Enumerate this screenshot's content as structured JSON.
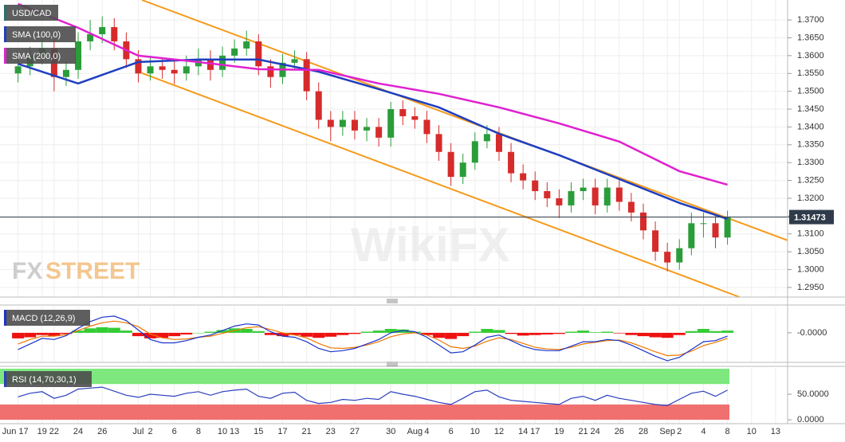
{
  "chart_data": [
    {
      "type": "candlestick",
      "title": "USD/CAD",
      "x": [
        0,
        1,
        2,
        3,
        4,
        5,
        6,
        7,
        8,
        9,
        10,
        11,
        12,
        13,
        14,
        15,
        16,
        17,
        18,
        19,
        20,
        21,
        22,
        23,
        24,
        25,
        26,
        27,
        28,
        29,
        30,
        31,
        32,
        33,
        34,
        35,
        36,
        37,
        38,
        39,
        40,
        41,
        42,
        43,
        44,
        45,
        46,
        47,
        48,
        49,
        50,
        51,
        52,
        53,
        54,
        55,
        56,
        57,
        58,
        59
      ],
      "open": [
        1.355,
        1.357,
        1.36,
        1.362,
        1.354,
        1.356,
        1.364,
        1.366,
        1.368,
        1.364,
        1.359,
        1.355,
        1.357,
        1.356,
        1.355,
        1.357,
        1.359,
        1.356,
        1.36,
        1.362,
        1.364,
        1.357,
        1.354,
        1.358,
        1.359,
        1.35,
        1.342,
        1.34,
        1.342,
        1.339,
        1.34,
        1.337,
        1.345,
        1.343,
        1.342,
        1.338,
        1.333,
        1.326,
        1.33,
        1.336,
        1.338,
        1.333,
        1.327,
        1.325,
        1.322,
        1.32,
        1.318,
        1.322,
        1.323,
        1.318,
        1.323,
        1.319,
        1.316,
        1.311,
        1.305,
        1.302,
        1.306,
        1.313,
        1.313,
        1.309
      ],
      "high": [
        1.3595,
        1.3625,
        1.3645,
        1.3645,
        1.3585,
        1.3665,
        1.37,
        1.371,
        1.3705,
        1.3665,
        1.3615,
        1.36,
        1.3595,
        1.3585,
        1.36,
        1.362,
        1.3615,
        1.3625,
        1.3645,
        1.367,
        1.366,
        1.359,
        1.3605,
        1.3615,
        1.361,
        1.3525,
        1.3445,
        1.3445,
        1.3445,
        1.3425,
        1.3425,
        1.347,
        1.3475,
        1.3455,
        1.3445,
        1.3405,
        1.3355,
        1.3325,
        1.3385,
        1.3405,
        1.34,
        1.3355,
        1.3295,
        1.3275,
        1.3245,
        1.3225,
        1.3245,
        1.3255,
        1.3255,
        1.3255,
        1.325,
        1.3215,
        1.3185,
        1.3135,
        1.3075,
        1.3085,
        1.316,
        1.316,
        1.315,
        1.3165
      ],
      "low": [
        1.3525,
        1.3545,
        1.3575,
        1.35,
        1.3515,
        1.3535,
        1.3615,
        1.3635,
        1.3615,
        1.3565,
        1.3525,
        1.353,
        1.3535,
        1.352,
        1.353,
        1.3545,
        1.353,
        1.354,
        1.358,
        1.36,
        1.3545,
        1.351,
        1.352,
        1.356,
        1.3475,
        1.3395,
        1.336,
        1.3375,
        1.3365,
        1.336,
        1.3345,
        1.3345,
        1.3405,
        1.3395,
        1.3355,
        1.3305,
        1.3235,
        1.324,
        1.328,
        1.334,
        1.3305,
        1.3245,
        1.3225,
        1.3195,
        1.3175,
        1.3145,
        1.316,
        1.3195,
        1.3155,
        1.316,
        1.3165,
        1.3135,
        1.3085,
        1.3025,
        1.2995,
        1.3,
        1.304,
        1.309,
        1.306,
        1.307
      ],
      "close": [
        1.357,
        1.36,
        1.362,
        1.354,
        1.356,
        1.364,
        1.366,
        1.368,
        1.364,
        1.359,
        1.355,
        1.357,
        1.356,
        1.355,
        1.357,
        1.359,
        1.356,
        1.36,
        1.362,
        1.364,
        1.357,
        1.354,
        1.358,
        1.359,
        1.35,
        1.342,
        1.34,
        1.342,
        1.339,
        1.34,
        1.337,
        1.345,
        1.343,
        1.342,
        1.338,
        1.333,
        1.326,
        1.33,
        1.336,
        1.338,
        1.333,
        1.327,
        1.325,
        1.322,
        1.32,
        1.318,
        1.322,
        1.323,
        1.318,
        1.323,
        1.319,
        1.316,
        1.311,
        1.305,
        1.302,
        1.306,
        1.313,
        1.313,
        1.309,
        1.3147
      ],
      "up_color": "#2a9d3a",
      "down_color": "#d62b2b",
      "lines": [
        {
          "name": "SMA (100,0)",
          "color": "#1f3fbf",
          "x": [
            0,
            5,
            10,
            15,
            20,
            25,
            30,
            35,
            40,
            45,
            50,
            55,
            59
          ],
          "values": [
            1.3577,
            1.3522,
            1.3582,
            1.3589,
            1.3589,
            1.3555,
            1.3506,
            1.3455,
            1.3381,
            1.3321,
            1.3254,
            1.3187,
            1.3142
          ]
        },
        {
          "name": "SMA (200,0)",
          "color": "#e020d0",
          "x": [
            0,
            5,
            10,
            15,
            20,
            25,
            30,
            35,
            40,
            45,
            50,
            55,
            59
          ],
          "values": [
            1.3745,
            1.3678,
            1.36,
            1.3582,
            1.3562,
            1.356,
            1.3522,
            1.3493,
            1.3455,
            1.341,
            1.3359,
            1.3276,
            1.3238
          ]
        }
      ],
      "trendlines": [
        {
          "color": "#f59a1a",
          "x": [
            10.3,
            64
          ],
          "values": [
            1.3756,
            1.3082
          ]
        },
        {
          "color": "#f59a1a",
          "x": [
            10.3,
            60
          ],
          "values": [
            1.3551,
            1.2923
          ]
        }
      ],
      "last_price": 1.31473,
      "xlim": [
        -1.5,
        64
      ],
      "xticks": [
        {
          "value": 0,
          "label": "Jun 17"
        },
        {
          "value": 2,
          "label": "19"
        },
        {
          "value": 3,
          "label": "22"
        },
        {
          "value": 5,
          "label": "24"
        },
        {
          "value": 7,
          "label": "26"
        },
        {
          "value": 10,
          "label": "Jul"
        },
        {
          "value": 11,
          "label": "2"
        },
        {
          "value": 13,
          "label": "6"
        },
        {
          "value": 15,
          "label": "8"
        },
        {
          "value": 17,
          "label": "10"
        },
        {
          "value": 18,
          "label": "13"
        },
        {
          "value": 20,
          "label": "15"
        },
        {
          "value": 22,
          "label": "17"
        },
        {
          "value": 24,
          "label": "21"
        },
        {
          "value": 26,
          "label": "23"
        },
        {
          "value": 28,
          "label": "27"
        },
        {
          "value": 31,
          "label": "30"
        },
        {
          "value": 33,
          "label": "Aug"
        },
        {
          "value": 34,
          "label": "4"
        },
        {
          "value": 36,
          "label": "6"
        },
        {
          "value": 38,
          "label": "10"
        },
        {
          "value": 40,
          "label": "12"
        },
        {
          "value": 42,
          "label": "14"
        },
        {
          "value": 43,
          "label": "17"
        },
        {
          "value": 45,
          "label": "19"
        },
        {
          "value": 47,
          "label": "21"
        },
        {
          "value": 48,
          "label": "24"
        },
        {
          "value": 50,
          "label": "26"
        },
        {
          "value": 52,
          "label": "28"
        },
        {
          "value": 54,
          "label": "Sep"
        },
        {
          "value": 55,
          "label": "2"
        },
        {
          "value": 57,
          "label": "4"
        },
        {
          "value": 59,
          "label": "8"
        },
        {
          "value": 61,
          "label": "10"
        },
        {
          "value": 63,
          "label": "13"
        }
      ],
      "ylim": [
        1.2923,
        1.3756
      ],
      "yticks": [
        {
          "value": 1.295,
          "label": "1.2950"
        },
        {
          "value": 1.3,
          "label": "1.3000"
        },
        {
          "value": 1.305,
          "label": "1.3050"
        },
        {
          "value": 1.31,
          "label": "1.3100"
        },
        {
          "value": 1.315,
          "label": "1.3150"
        },
        {
          "value": 1.32,
          "label": "1.3200"
        },
        {
          "value": 1.325,
          "label": "1.3250"
        },
        {
          "value": 1.33,
          "label": "1.3300"
        },
        {
          "value": 1.335,
          "label": "1.3350"
        },
        {
          "value": 1.34,
          "label": "1.3400"
        },
        {
          "value": 1.345,
          "label": "1.3450"
        },
        {
          "value": 1.35,
          "label": "1.3500"
        },
        {
          "value": 1.355,
          "label": "1.3550"
        },
        {
          "value": 1.36,
          "label": "1.3600"
        },
        {
          "value": 1.365,
          "label": "1.3650"
        },
        {
          "value": 1.37,
          "label": "1.3700"
        }
      ],
      "grid": true
    },
    {
      "type": "macd",
      "title": "MACD (12,26,9)",
      "histogram": [
        -0.001,
        -0.0008,
        -0.0004,
        -0.0006,
        -0.0002,
        0.0004,
        0.0008,
        0.001,
        0.0009,
        0.0004,
        -0.0006,
        -0.001,
        -0.0009,
        -0.0006,
        -0.0003,
        0.0,
        0.0002,
        0.0005,
        0.0008,
        0.0007,
        0.0003,
        -0.0004,
        -0.0006,
        -0.0004,
        -0.0007,
        -0.0009,
        -0.0007,
        -0.0004,
        -0.0002,
        0.0002,
        0.0004,
        0.0007,
        0.0006,
        0.0002,
        -0.0004,
        -0.0009,
        -0.0011,
        -0.0006,
        0.0002,
        0.0007,
        0.0005,
        -0.0002,
        -0.0005,
        -0.0004,
        -0.0003,
        -0.0002,
        0.0002,
        0.0004,
        0.0001,
        0.0002,
        -0.0001,
        -0.0004,
        -0.0006,
        -0.0008,
        -0.0009,
        -0.0004,
        0.0003,
        0.0007,
        0.0003,
        0.0004
      ],
      "macd": [
        -0.003,
        -0.002,
        -0.001,
        -0.0012,
        -0.0005,
        0.0008,
        0.002,
        0.0028,
        0.003,
        0.0022,
        0.0005,
        -0.0012,
        -0.0018,
        -0.0018,
        -0.0014,
        -0.0008,
        -0.0004,
        0.0004,
        0.0012,
        0.0016,
        0.0014,
        0.0002,
        -0.0006,
        -0.0008,
        -0.0016,
        -0.0028,
        -0.0034,
        -0.0032,
        -0.0028,
        -0.002,
        -0.0012,
        0.0,
        0.0004,
        0.0002,
        -0.0008,
        -0.0022,
        -0.0036,
        -0.0034,
        -0.0022,
        -0.0008,
        -0.0004,
        -0.0014,
        -0.0024,
        -0.003,
        -0.0032,
        -0.0032,
        -0.0024,
        -0.0016,
        -0.0016,
        -0.0012,
        -0.0014,
        -0.0022,
        -0.0032,
        -0.0042,
        -0.005,
        -0.0044,
        -0.003,
        -0.0016,
        -0.0014,
        -0.0006
      ],
      "signal": [
        -0.002,
        -0.0012,
        -0.0006,
        -0.0006,
        -0.0003,
        0.0004,
        0.0012,
        0.0018,
        0.0021,
        0.0018,
        0.0011,
        -0.0002,
        -0.0009,
        -0.0012,
        -0.0011,
        -0.0008,
        -0.0006,
        -0.0001,
        0.0004,
        0.0009,
        0.0011,
        0.0006,
        0.0,
        -0.0004,
        -0.0009,
        -0.0019,
        -0.0027,
        -0.0028,
        -0.0026,
        -0.0022,
        -0.0016,
        -0.0007,
        -0.0002,
        0.0,
        -0.0004,
        -0.0013,
        -0.0025,
        -0.0028,
        -0.0024,
        -0.0015,
        -0.0009,
        -0.0012,
        -0.0019,
        -0.0026,
        -0.0029,
        -0.003,
        -0.0026,
        -0.002,
        -0.0017,
        -0.0014,
        -0.0013,
        -0.0018,
        -0.0026,
        -0.0034,
        -0.0041,
        -0.004,
        -0.0033,
        -0.0023,
        -0.0017,
        -0.001
      ],
      "up_color": "#33cc33",
      "down_color": "#ee1111",
      "macd_color": "#1a33cc",
      "signal_color": "#ee7700",
      "ylim": [
        -0.0053,
        0.0047
      ],
      "yticks": [
        {
          "value": 0,
          "label": "-0.0000"
        }
      ]
    },
    {
      "type": "rsi",
      "title": "RSI (14,70,30,1)",
      "values": [
        45,
        52,
        55,
        42,
        48,
        60,
        62,
        64,
        56,
        48,
        44,
        50,
        48,
        46,
        52,
        55,
        48,
        55,
        58,
        60,
        46,
        42,
        52,
        54,
        38,
        32,
        34,
        40,
        38,
        42,
        40,
        55,
        50,
        46,
        40,
        34,
        30,
        42,
        55,
        58,
        45,
        38,
        36,
        34,
        32,
        30,
        42,
        46,
        38,
        48,
        42,
        38,
        34,
        30,
        28,
        40,
        52,
        56,
        46,
        58
      ],
      "color": "#2a3fbf",
      "overbought": 70,
      "oversold": 30,
      "overbought_color": "#7ee87e",
      "oversold_color": "#f07070",
      "ylim": [
        -7.6,
        101.5
      ],
      "yticks": [
        {
          "value": 50,
          "label": "50.0000"
        },
        {
          "value": 0,
          "label": "0.0000"
        }
      ]
    }
  ],
  "watermarks": {
    "fx": "FX",
    "street": "STREET",
    "wikifx": "WikiFX"
  }
}
